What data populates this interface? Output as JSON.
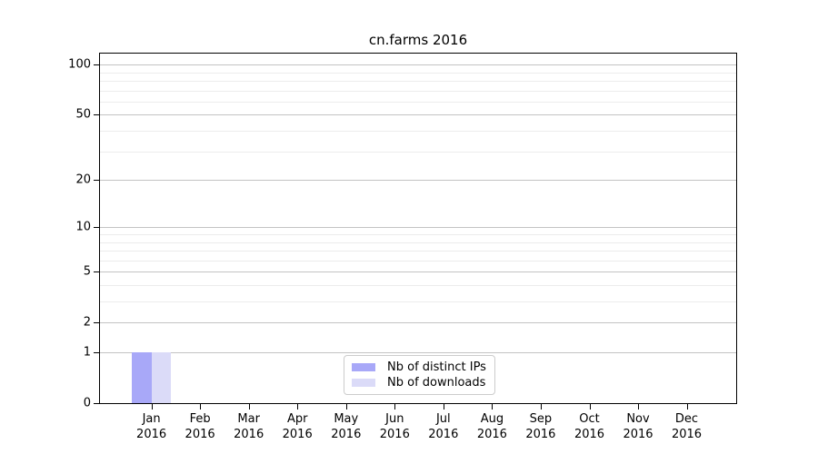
{
  "title": "cn.farms 2016",
  "chart_data": {
    "type": "bar",
    "title": "cn.farms 2016",
    "x_categories": [
      "Jan",
      "Feb",
      "Mar",
      "Apr",
      "May",
      "Jun",
      "Jul",
      "Aug",
      "Sep",
      "Oct",
      "Nov",
      "Dec"
    ],
    "x_year_line": "2016",
    "series": [
      {
        "name": "Nb of distinct IPs",
        "color": "#a8a8f8",
        "values": [
          1,
          0,
          0,
          0,
          0,
          0,
          0,
          0,
          0,
          0,
          0,
          0
        ]
      },
      {
        "name": "Nb of downloads",
        "color": "#dbdbf8",
        "values": [
          1,
          0,
          0,
          0,
          0,
          0,
          0,
          0,
          0,
          0,
          0,
          0
        ]
      }
    ],
    "yscale": "log10(1+x)",
    "y_tick_values": [
      0,
      1,
      2,
      5,
      10,
      20,
      50,
      100
    ],
    "y_minor_grid_values": [
      3,
      4,
      6,
      7,
      8,
      9,
      30,
      40,
      60,
      70,
      80,
      90
    ],
    "ylim": [
      0,
      117
    ],
    "grid": true,
    "legend_position": "bottom-center"
  },
  "colors": {
    "background": "#ffffff",
    "axis": "#000000",
    "major_gridline": "#c3c3c3",
    "minor_gridline": "#ececec",
    "legend_border": "#cccccc",
    "text": "#000000"
  }
}
